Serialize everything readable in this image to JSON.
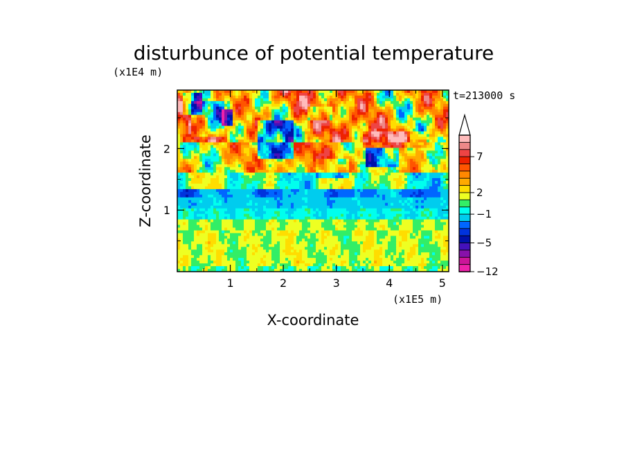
{
  "chart_data": {
    "type": "heatmap",
    "title": "disturbunce of potential temperature",
    "xlabel": "X-coordinate",
    "ylabel": "Z-coordinate",
    "x_scale_label": "(x1E5 m)",
    "y_scale_label": "(x1E4 m)",
    "time_label": "t=213000 s",
    "x_ticks": [
      "1",
      "2",
      "3",
      "4",
      "5"
    ],
    "y_ticks": [
      "1",
      "2"
    ],
    "xlim": [
      0,
      5.12
    ],
    "ylim": [
      0,
      2.95
    ],
    "grid": false,
    "colorbar": {
      "placement": "right",
      "extend_top": true,
      "tick_labels": [
        "7",
        "2",
        "−1",
        "−5",
        "−12"
      ],
      "levels": [
        {
          "min": -12,
          "max": -10,
          "color": "#ee22aa"
        },
        {
          "min": -10,
          "max": -8,
          "color": "#cc1599"
        },
        {
          "min": -8,
          "max": -6,
          "color": "#8811aa"
        },
        {
          "min": -6,
          "max": -5,
          "color": "#4411bb"
        },
        {
          "min": -5,
          "max": -4,
          "color": "#0011aa"
        },
        {
          "min": -4,
          "max": -3,
          "color": "#0033dd"
        },
        {
          "min": -3,
          "max": -2,
          "color": "#0066ff"
        },
        {
          "min": -2,
          "max": -1,
          "color": "#00ccee"
        },
        {
          "min": -1,
          "max": 0,
          "color": "#00ffee"
        },
        {
          "min": 0,
          "max": 1,
          "color": "#33ee66"
        },
        {
          "min": 1,
          "max": 2,
          "color": "#eeff22"
        },
        {
          "min": 2,
          "max": 3,
          "color": "#ffdd00"
        },
        {
          "min": 3,
          "max": 4,
          "color": "#ffaa00"
        },
        {
          "min": 4,
          "max": 5,
          "color": "#ff8800"
        },
        {
          "min": 5,
          "max": 6,
          "color": "#ff5500"
        },
        {
          "min": 6,
          "max": 7,
          "color": "#ee2200"
        },
        {
          "min": 7,
          "max": 8,
          "color": "#ee4444"
        },
        {
          "min": 8,
          "max": 9,
          "color": "#ee8888"
        },
        {
          "min": 9,
          "max": 10,
          "color": "#ffbbbb"
        }
      ]
    },
    "regions": [
      {
        "z": [
          0,
          0.85
        ],
        "description_value": 1.5
      },
      {
        "z": [
          0.85,
          1.05
        ],
        "description_value": -0.5
      },
      {
        "z": [
          1.05,
          1.35
        ],
        "description_value": -1.5
      },
      {
        "z": [
          1.35,
          2.95
        ],
        "description_value": 4
      }
    ]
  }
}
